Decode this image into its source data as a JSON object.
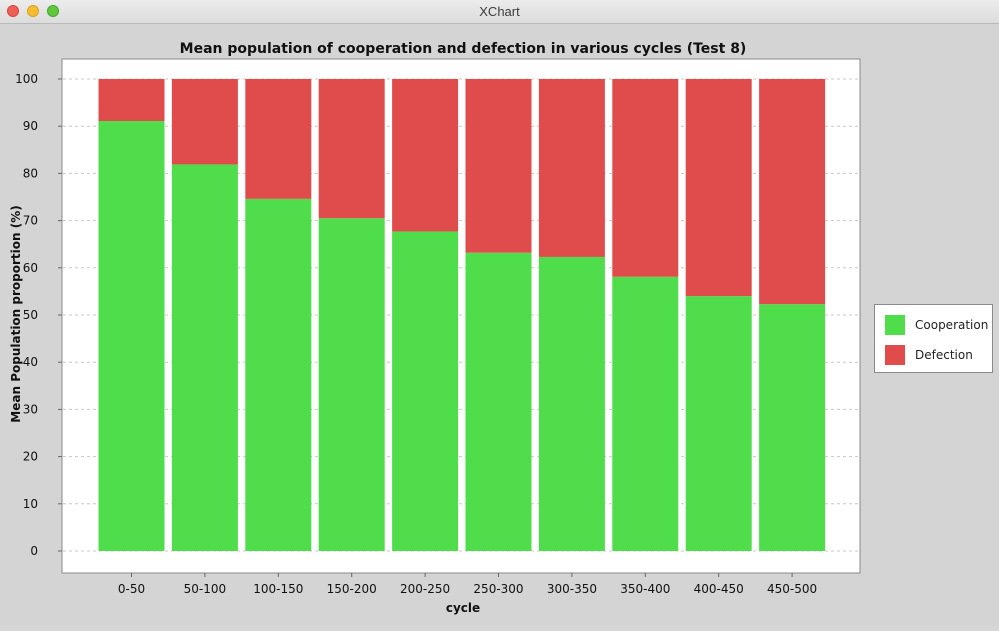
{
  "window": {
    "title": "XChart"
  },
  "chart_data": {
    "type": "bar",
    "stacked": true,
    "title": "Mean population of cooperation and defection in various cycles (Test 8)",
    "xlabel": "cycle",
    "ylabel": "Mean Population proportion (%)",
    "ylim": [
      0,
      100
    ],
    "yticks": [
      0,
      10,
      20,
      30,
      40,
      50,
      60,
      70,
      80,
      90,
      100
    ],
    "grid": true,
    "legend_position": "right",
    "categories": [
      "0-50",
      "50-100",
      "100-150",
      "150-200",
      "200-250",
      "250-300",
      "300-350",
      "350-400",
      "400-450",
      "450-500"
    ],
    "series": [
      {
        "name": "Cooperation",
        "color": "#50dd4c",
        "values": [
          91.1,
          81.9,
          74.6,
          70.5,
          67.7,
          63.2,
          62.3,
          58.1,
          54.0,
          52.3
        ]
      },
      {
        "name": "Defection",
        "color": "#e04c4c",
        "values": [
          8.9,
          18.1,
          25.4,
          29.5,
          32.3,
          36.8,
          37.7,
          41.9,
          46.0,
          47.7
        ]
      }
    ]
  }
}
